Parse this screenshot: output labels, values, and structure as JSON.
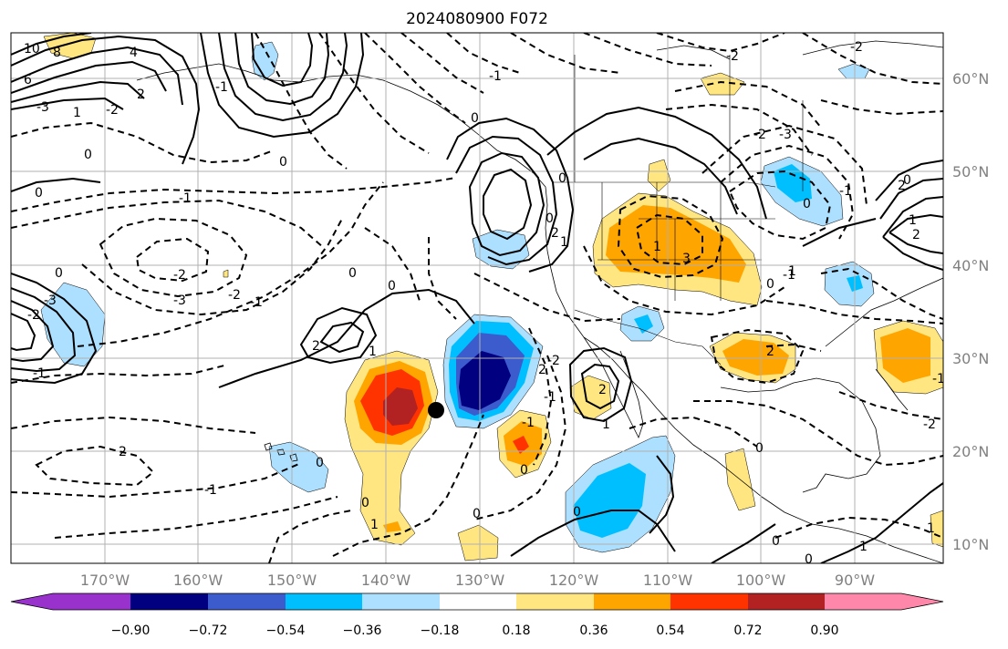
{
  "title": "2024080900 F072",
  "map": {
    "lon_labels": [
      "170°W",
      "160°W",
      "150°W",
      "140°W",
      "130°W",
      "120°W",
      "110°W",
      "100°W",
      "90°W"
    ],
    "lat_labels": [
      "60°N",
      "50°N",
      "40°N",
      "30°N",
      "20°N",
      "10°N"
    ],
    "gridlines": true,
    "marker": "black-dot"
  },
  "colorbar": {
    "ticks": [
      "−0.90",
      "−0.72",
      "−0.54",
      "−0.36",
      "−0.18",
      "0.18",
      "0.36",
      "0.54",
      "0.72",
      "0.90"
    ],
    "colors": [
      "#9932cc",
      "#000080",
      "#3c5bcc",
      "#00bfff",
      "#addfff",
      "#ffffff",
      "#ffe680",
      "#ffa500",
      "#ff3300",
      "#b22222",
      "#ff88aa"
    ]
  },
  "contour_labels": [
    "10",
    "8",
    "6",
    "4",
    "2",
    "1",
    "0",
    "-1",
    "-2",
    "-3",
    "0",
    "-1",
    "-2",
    "-3",
    "-2",
    "-1",
    "0",
    "0",
    "2",
    "1",
    "-3",
    "-2",
    "-1",
    "0",
    "2",
    "1",
    "0",
    "-1",
    "0",
    "0",
    "0",
    "1",
    "1",
    "2",
    "2",
    "3",
    "-2",
    "-3",
    "-2",
    "0",
    "0",
    "0",
    "0",
    "1",
    "1",
    "-1",
    "2",
    "1",
    "2",
    "2",
    "-1",
    "2",
    "-2",
    "-1",
    "0",
    "-1",
    "-2",
    "1",
    "0",
    "-1",
    "-2",
    "0",
    "0",
    "0",
    "-1",
    "0",
    "0",
    "1"
  ]
}
